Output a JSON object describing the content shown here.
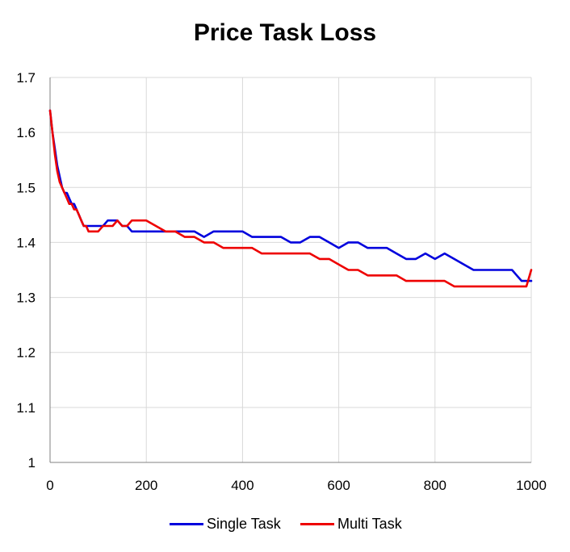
{
  "chart_data": {
    "type": "line",
    "title": "Price Task Loss",
    "xlabel": "",
    "ylabel": "",
    "xlim": [
      0,
      1000
    ],
    "ylim": [
      1,
      1.7
    ],
    "x_ticks": [
      "0",
      "200",
      "400",
      "600",
      "800",
      "1000"
    ],
    "y_ticks": [
      "1",
      "1.1",
      "1.2",
      "1.3",
      "1.4",
      "1.5",
      "1.6",
      "1.7"
    ],
    "grid": true,
    "legend_position": "bottom",
    "series": [
      {
        "name": "Single Task",
        "color": "#0000dd",
        "x": [
          0,
          5,
          10,
          15,
          20,
          25,
          30,
          35,
          40,
          45,
          50,
          55,
          60,
          65,
          70,
          75,
          80,
          85,
          90,
          95,
          100,
          110,
          120,
          130,
          140,
          150,
          160,
          170,
          180,
          190,
          200,
          220,
          240,
          260,
          280,
          300,
          320,
          340,
          360,
          380,
          400,
          420,
          440,
          460,
          480,
          500,
          520,
          540,
          560,
          580,
          600,
          620,
          640,
          660,
          680,
          700,
          720,
          740,
          760,
          780,
          800,
          820,
          840,
          860,
          880,
          900,
          920,
          940,
          960,
          970,
          980,
          990,
          1000
        ],
        "y": [
          1.64,
          1.6,
          1.57,
          1.54,
          1.52,
          1.5,
          1.49,
          1.49,
          1.48,
          1.47,
          1.47,
          1.46,
          1.45,
          1.44,
          1.43,
          1.43,
          1.43,
          1.43,
          1.43,
          1.43,
          1.43,
          1.43,
          1.44,
          1.44,
          1.44,
          1.43,
          1.43,
          1.42,
          1.42,
          1.42,
          1.42,
          1.42,
          1.42,
          1.42,
          1.42,
          1.42,
          1.41,
          1.42,
          1.42,
          1.42,
          1.42,
          1.41,
          1.41,
          1.41,
          1.41,
          1.4,
          1.4,
          1.41,
          1.41,
          1.4,
          1.39,
          1.4,
          1.4,
          1.39,
          1.39,
          1.39,
          1.38,
          1.37,
          1.37,
          1.38,
          1.37,
          1.38,
          1.37,
          1.36,
          1.35,
          1.35,
          1.35,
          1.35,
          1.35,
          1.34,
          1.33,
          1.33,
          1.33
        ]
      },
      {
        "name": "Multi Task",
        "color": "#ee0000",
        "x": [
          0,
          5,
          10,
          15,
          20,
          25,
          30,
          35,
          40,
          45,
          50,
          55,
          60,
          65,
          70,
          75,
          80,
          85,
          90,
          95,
          100,
          110,
          120,
          130,
          140,
          150,
          160,
          170,
          180,
          190,
          200,
          220,
          240,
          260,
          280,
          300,
          320,
          340,
          360,
          380,
          400,
          420,
          440,
          460,
          480,
          500,
          520,
          540,
          560,
          580,
          600,
          620,
          640,
          660,
          680,
          700,
          720,
          740,
          760,
          780,
          800,
          820,
          840,
          860,
          880,
          900,
          920,
          940,
          960,
          970,
          980,
          990,
          1000
        ],
        "y": [
          1.64,
          1.6,
          1.56,
          1.53,
          1.51,
          1.5,
          1.49,
          1.48,
          1.47,
          1.47,
          1.46,
          1.46,
          1.45,
          1.44,
          1.43,
          1.43,
          1.42,
          1.42,
          1.42,
          1.42,
          1.42,
          1.43,
          1.43,
          1.43,
          1.44,
          1.43,
          1.43,
          1.44,
          1.44,
          1.44,
          1.44,
          1.43,
          1.42,
          1.42,
          1.41,
          1.41,
          1.4,
          1.4,
          1.39,
          1.39,
          1.39,
          1.39,
          1.38,
          1.38,
          1.38,
          1.38,
          1.38,
          1.38,
          1.37,
          1.37,
          1.36,
          1.35,
          1.35,
          1.34,
          1.34,
          1.34,
          1.34,
          1.33,
          1.33,
          1.33,
          1.33,
          1.33,
          1.32,
          1.32,
          1.32,
          1.32,
          1.32,
          1.32,
          1.32,
          1.32,
          1.32,
          1.32,
          1.35
        ]
      }
    ]
  }
}
